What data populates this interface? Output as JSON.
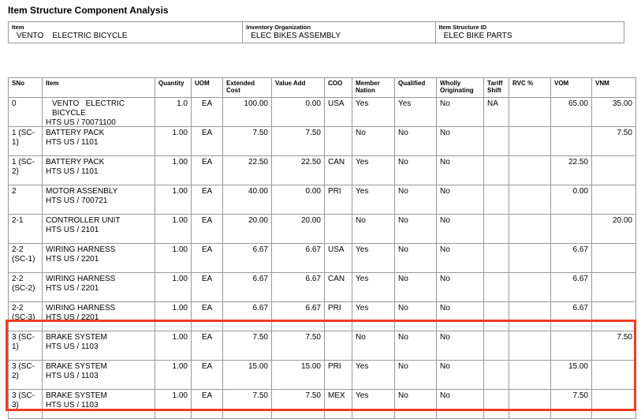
{
  "header": {
    "title": "Item Structure Component Analysis",
    "fields": [
      {
        "label": "Item",
        "value": "VENTO    ELECTRIC BICYCLE"
      },
      {
        "label": "Inventory Organization",
        "value": "ELEC BIKES ASSEMBLY"
      },
      {
        "label": "Item Structure ID",
        "value": "ELEC BIKE PARTS"
      }
    ]
  },
  "table": {
    "columns": [
      "SNo",
      "Item",
      "Quantity",
      "UOM",
      "Extended Cost",
      "Value Add",
      "COO",
      "Member Nation",
      "Qualified",
      "Wholly Originating",
      "Tariff Shift",
      "RVC %",
      "VOM",
      "VNM"
    ],
    "rows": [
      [
        "0",
        [
          "VENTO   ELECTRIC BICYCLE",
          "HTS US / 70071100"
        ],
        "1.0",
        "EA",
        "100.00",
        "0.00",
        "USA",
        "Yes",
        "Yes",
        "No",
        "NA",
        null,
        "65.00",
        "35.00"
      ],
      [
        "1 (SC-1)",
        [
          "BATTERY PACK",
          "HTS US / 1101"
        ],
        "1.00",
        "EA",
        "7.50",
        "7.50",
        null,
        "No",
        "No",
        "No",
        null,
        null,
        null,
        "7.50"
      ],
      [
        "1 (SC-2)",
        [
          "BATTERY PACK",
          "HTS US / 1101"
        ],
        "1.00",
        "EA",
        "22.50",
        "22.50",
        "CAN",
        "Yes",
        "No",
        "No",
        null,
        null,
        "22.50",
        null
      ],
      [
        "2",
        [
          "MOTOR ASSENBLY",
          "HTS US / 700721"
        ],
        "1.00",
        "EA",
        "40.00",
        "0.00",
        "PRI",
        "Yes",
        "No",
        "No",
        null,
        null,
        "0.00",
        null
      ],
      [
        "2-1",
        [
          "CONTROLLER UNIT",
          "HTS US / 2101"
        ],
        "1.00",
        "EA",
        "20.00",
        "20.00",
        null,
        "No",
        "No",
        "No",
        null,
        null,
        null,
        "20.00"
      ],
      [
        "2-2 (SC-1)",
        [
          "WIRING HARNESS",
          "HTS US / 2201"
        ],
        "1.00",
        "EA",
        "6.67",
        "6.67",
        "USA",
        "Yes",
        "No",
        "No",
        null,
        null,
        "6.67",
        null
      ],
      [
        "2-2 (SC-2)",
        [
          "WIRING HARNESS",
          "HTS US / 2201"
        ],
        "1.00",
        "EA",
        "6.67",
        "6.67",
        "CAN",
        "Yes",
        "No",
        "No",
        null,
        null,
        "6.67",
        null
      ],
      [
        "2-2 (SC-3)",
        [
          "WIRING HARNESS",
          "HTS US / 2201"
        ],
        "1.00",
        "EA",
        "6.67",
        "6.67",
        "PRI",
        "Yes",
        "No",
        "No",
        null,
        null,
        "6.67",
        null
      ],
      [
        "3 (SC-1)",
        [
          "BRAKE SYSTEM",
          "HTS US / 1103"
        ],
        "1.00",
        "EA",
        "7.50",
        "7.50",
        null,
        "No",
        "No",
        "No",
        null,
        null,
        null,
        "7.50"
      ],
      [
        "3 (SC-2)",
        [
          "BRAKE SYSTEM",
          "HTS US / 1103"
        ],
        "1.00",
        "EA",
        "15.00",
        "15.00",
        "PRI",
        "Yes",
        "No",
        "No",
        null,
        null,
        "15.00",
        null
      ],
      [
        "3 (SC-3)",
        [
          "BRAKE SYSTEM",
          "HTS US / 1103"
        ],
        "1.00",
        "EA",
        "7.50",
        "7.50",
        "MEX",
        "Yes",
        "No",
        "No",
        null,
        null,
        "7.50",
        null
      ]
    ]
  }
}
